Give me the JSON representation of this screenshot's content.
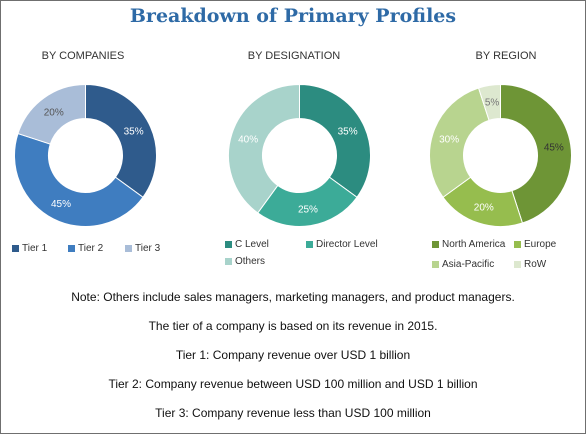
{
  "title": "Breakdown of Primary Profiles",
  "chart_data": [
    {
      "type": "pie",
      "title": "BY COMPANIES",
      "categories": [
        "Tier 1",
        "Tier 2",
        "Tier 3"
      ],
      "values": [
        35,
        45,
        20
      ],
      "value_labels": [
        "35%",
        "45%",
        "20%"
      ],
      "colors": [
        "#2f5b8c",
        "#3f7dc0",
        "#a9bdd8"
      ],
      "label_colors": [
        "#ffffff",
        "#ffffff",
        "#555555"
      ]
    },
    {
      "type": "pie",
      "title": "BY DESIGNATION",
      "categories": [
        "C Level",
        "Director Level",
        "Others"
      ],
      "values": [
        35,
        25,
        40
      ],
      "value_labels": [
        "35%",
        "25%",
        "40%"
      ],
      "colors": [
        "#2c8c80",
        "#3cab98",
        "#a8d3cb"
      ],
      "label_colors": [
        "#ffffff",
        "#ffffff",
        "#ffffff"
      ]
    },
    {
      "type": "pie",
      "title": "BY REGION",
      "categories": [
        "North America",
        "Europe",
        "Asia-Pacific",
        "RoW"
      ],
      "values": [
        45,
        20,
        30,
        5
      ],
      "value_labels": [
        "45%",
        "20%",
        "30%",
        "5%"
      ],
      "colors": [
        "#6e9536",
        "#96bd4e",
        "#b8d48f",
        "#dde8cf"
      ],
      "label_colors": [
        "#333333",
        "#ffffff",
        "#ffffff",
        "#777777"
      ]
    }
  ],
  "notes": [
    "Note: Others include sales managers, marketing managers, and product managers.",
    "The tier of a company is based on its revenue in 2015.",
    "Tier 1: Company revenue over USD 1 billion",
    "Tier 2: Company revenue between USD 100 million and USD 1 billion",
    "Tier 3: Company revenue less than USD 100 million"
  ]
}
